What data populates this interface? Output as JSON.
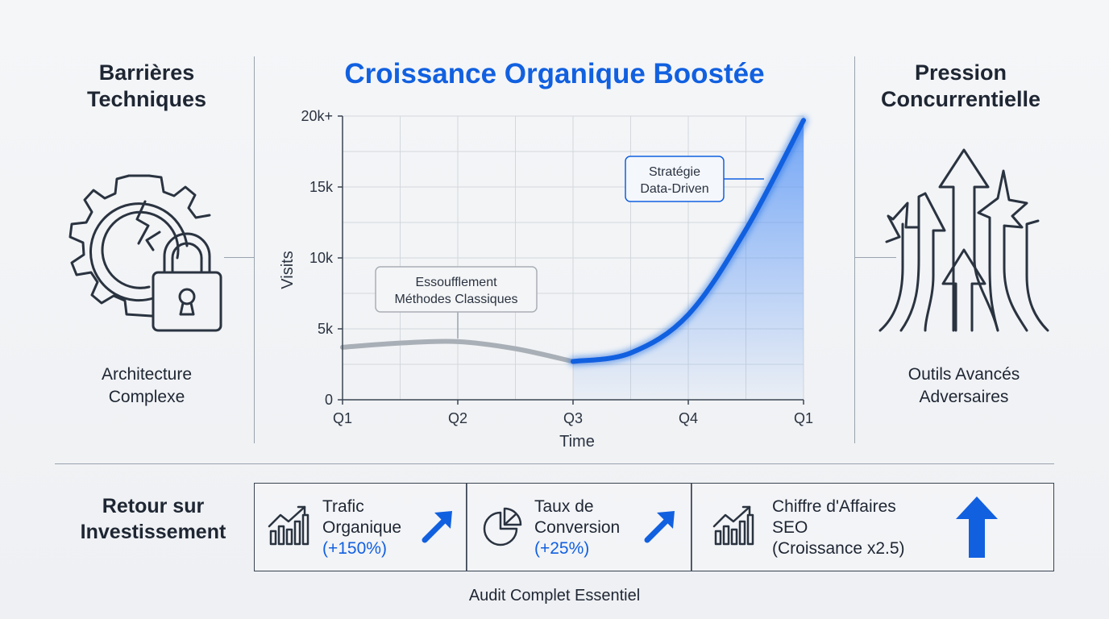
{
  "left_panel": {
    "title_line1": "Barrières",
    "title_line2": "Techniques",
    "subtitle_line1": "Architecture",
    "subtitle_line2": "Complexe",
    "icon": "gear-broken-lock-icon"
  },
  "right_panel": {
    "title_line1": "Pression",
    "title_line2": "Concurrentielle",
    "subtitle_line1": "Outils Avancés",
    "subtitle_line2": "Adversaires",
    "icon": "competing-arrows-icon"
  },
  "chart_title": "Croissance Organique Boostée",
  "chart_data": {
    "type": "line",
    "title": "Croissance Organique Boostée",
    "xlabel": "Time",
    "ylabel": "Visits",
    "x_ticks": [
      "Q1",
      "Q2",
      "Q3",
      "Q4",
      "Q1"
    ],
    "y_ticks": [
      "0",
      "5k",
      "10k",
      "15k",
      "20k+"
    ],
    "ylim": [
      0,
      20000
    ],
    "grid": true,
    "series": [
      {
        "points": [
          [
            0,
            3700
          ],
          [
            0.5,
            4000
          ],
          [
            1,
            4100
          ],
          [
            1.5,
            3600
          ],
          [
            2,
            2700
          ]
        ],
        "color": "#a9afb6"
      },
      {
        "points": [
          [
            2,
            2700
          ],
          [
            2.5,
            3300
          ],
          [
            3,
            6000
          ],
          [
            3.5,
            12000
          ],
          [
            4,
            19700
          ]
        ],
        "color": "#1160e0"
      }
    ],
    "annotations": [
      {
        "line1": "Essoufflement",
        "line2": "Méthodes Classiques"
      },
      {
        "line1": "Stratégie",
        "line2": "Data-Driven"
      }
    ]
  },
  "roi": {
    "title_line1": "Retour sur",
    "title_line2": "Investissement",
    "kpis": [
      {
        "line1": "Trafic",
        "line2": "Organique",
        "line3": "(+150%)",
        "icon": "bar-chart-growth-icon",
        "trend_icon": "arrow-up-right-icon"
      },
      {
        "line1": "Taux de",
        "line2": "Conversion",
        "line3": "(+25%)",
        "icon": "pie-chart-icon",
        "trend_icon": "arrow-up-right-icon"
      },
      {
        "line1": "Chiffre d'Affaires",
        "line2": "SEO",
        "line3": "(Croissance x2.5)",
        "icon": "bar-chart-growth-icon",
        "trend_icon": "arrow-up-icon"
      }
    ]
  },
  "footer": "Audit Complet Essentiel",
  "colors": {
    "accent": "#1160e0",
    "muted_line": "#a9afb6",
    "text": "#1e2633"
  }
}
